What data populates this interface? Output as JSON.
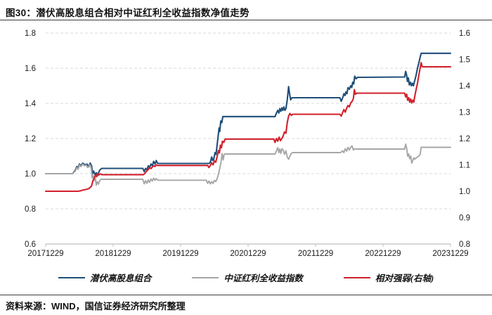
{
  "header": {
    "title": "图30：潜伏高股息组合相对中证红利全收益指数净值走势"
  },
  "footer": {
    "source": "资料来源：WIND，国信证券经济研究所整理"
  },
  "colors": {
    "portfolio": "#1F4E79",
    "index": "#A6A6A6",
    "relative": "#D0212D",
    "grid": "#D9D9D9",
    "axis": "#BFBFBF",
    "text": "#1a1a1a"
  },
  "chart_data": {
    "type": "line",
    "title": "图30：潜伏高股息组合相对中证红利全收益指数净值走势",
    "xlabel": "",
    "ylabel_left": "",
    "ylabel_right": "",
    "grid": "horizontal-dashed",
    "legend_position": "bottom",
    "x_range": [
      0,
      6
    ],
    "x_tick_labels": [
      "20171229",
      "20181229",
      "20191229",
      "20201229",
      "20211229",
      "20221229",
      "20231229"
    ],
    "left_axis": {
      "range": [
        0.6,
        1.8
      ],
      "ticks": [
        "0.6",
        "0.8",
        "1.0",
        "1.2",
        "1.4",
        "1.6",
        "1.8"
      ]
    },
    "right_axis": {
      "range": [
        0.8,
        1.6
      ],
      "ticks": [
        "0.8",
        "0.9",
        "1.0",
        "1.1",
        "1.2",
        "1.3",
        "1.4",
        "1.5",
        "1.6"
      ]
    },
    "series": [
      {
        "name": "潜伏高股息组合",
        "color": "#1F4E79",
        "axis": "left",
        "width": 2.1,
        "points": [
          [
            0,
            1.0
          ],
          [
            0.4,
            1.0
          ],
          [
            0.44,
            1.02
          ],
          [
            0.46,
            1.04
          ],
          [
            0.48,
            1.035
          ],
          [
            0.5,
            1.055
          ],
          [
            0.52,
            1.045
          ],
          [
            0.55,
            1.06
          ],
          [
            0.58,
            1.05
          ],
          [
            0.61,
            1.055
          ],
          [
            0.64,
            1.04
          ],
          [
            0.66,
            1.06
          ],
          [
            0.68,
            1.045
          ],
          [
            0.695,
            1.0
          ],
          [
            0.71,
            1.015
          ],
          [
            0.73,
            0.995
          ],
          [
            0.75,
            1.005
          ],
          [
            0.77,
            0.99
          ],
          [
            0.8,
            1.02
          ],
          [
            0.83,
            1.03
          ],
          [
            1.44,
            1.03
          ],
          [
            1.46,
            1.012
          ],
          [
            1.48,
            1.03
          ],
          [
            1.5,
            1.02
          ],
          [
            1.52,
            1.045
          ],
          [
            1.54,
            1.035
          ],
          [
            1.56,
            1.055
          ],
          [
            1.58,
            1.045
          ],
          [
            1.6,
            1.07
          ],
          [
            1.62,
            1.055
          ],
          [
            1.64,
            1.075
          ],
          [
            1.655,
            1.06
          ],
          [
            1.67,
            1.058
          ],
          [
            2.42,
            1.058
          ],
          [
            2.44,
            1.065
          ],
          [
            2.46,
            1.095
          ],
          [
            2.475,
            1.075
          ],
          [
            2.49,
            1.08
          ],
          [
            2.51,
            1.12
          ],
          [
            2.525,
            1.11
          ],
          [
            2.54,
            1.16
          ],
          [
            2.555,
            1.21
          ],
          [
            2.57,
            1.26
          ],
          [
            2.58,
            1.24
          ],
          [
            2.595,
            1.3
          ],
          [
            2.61,
            1.29
          ],
          [
            2.625,
            1.325
          ],
          [
            3.4,
            1.325
          ],
          [
            3.42,
            1.345
          ],
          [
            3.44,
            1.36
          ],
          [
            3.455,
            1.345
          ],
          [
            3.47,
            1.37
          ],
          [
            3.485,
            1.355
          ],
          [
            3.5,
            1.375
          ],
          [
            3.515,
            1.36
          ],
          [
            3.53,
            1.38
          ],
          [
            3.545,
            1.36
          ],
          [
            3.56,
            1.37
          ],
          [
            3.58,
            1.42
          ],
          [
            3.6,
            1.495
          ],
          [
            3.615,
            1.455
          ],
          [
            3.63,
            1.42
          ],
          [
            3.65,
            1.432
          ],
          [
            4.36,
            1.432
          ],
          [
            4.38,
            1.412
          ],
          [
            4.4,
            1.43
          ],
          [
            4.42,
            1.455
          ],
          [
            4.435,
            1.445
          ],
          [
            4.45,
            1.465
          ],
          [
            4.465,
            1.455
          ],
          [
            4.48,
            1.49
          ],
          [
            4.5,
            1.48
          ],
          [
            4.52,
            1.5
          ],
          [
            4.535,
            1.49
          ],
          [
            4.55,
            1.52
          ],
          [
            4.565,
            1.51
          ],
          [
            4.58,
            1.555
          ],
          [
            4.6,
            1.54
          ],
          [
            4.62,
            1.548
          ],
          [
            5.32,
            1.55
          ],
          [
            5.335,
            1.582
          ],
          [
            5.35,
            1.56
          ],
          [
            5.36,
            1.525
          ],
          [
            5.375,
            1.545
          ],
          [
            5.39,
            1.505
          ],
          [
            5.405,
            1.52
          ],
          [
            5.42,
            1.5
          ],
          [
            5.435,
            1.515
          ],
          [
            5.45,
            1.5
          ],
          [
            5.47,
            1.53
          ],
          [
            5.49,
            1.56
          ],
          [
            5.51,
            1.6
          ],
          [
            5.53,
            1.63
          ],
          [
            5.55,
            1.663
          ],
          [
            5.565,
            1.685
          ],
          [
            6.0,
            1.685
          ]
        ]
      },
      {
        "name": "中证红利全收益指数",
        "color": "#A6A6A6",
        "axis": "left",
        "width": 1.9,
        "points": [
          [
            0,
            1.0
          ],
          [
            0.4,
            1.0
          ],
          [
            0.44,
            1.015
          ],
          [
            0.46,
            1.035
          ],
          [
            0.48,
            1.025
          ],
          [
            0.5,
            1.05
          ],
          [
            0.52,
            1.04
          ],
          [
            0.55,
            1.055
          ],
          [
            0.575,
            1.045
          ],
          [
            0.6,
            1.05
          ],
          [
            0.62,
            1.035
          ],
          [
            0.645,
            1.045
          ],
          [
            0.66,
            1.05
          ],
          [
            0.675,
            1.03
          ],
          [
            0.69,
            0.975
          ],
          [
            0.705,
            0.99
          ],
          [
            0.72,
            0.96
          ],
          [
            0.735,
            0.975
          ],
          [
            0.75,
            0.935
          ],
          [
            0.765,
            0.955
          ],
          [
            0.78,
            0.94
          ],
          [
            0.8,
            0.96
          ],
          [
            0.82,
            0.968
          ],
          [
            1.44,
            0.968
          ],
          [
            1.46,
            0.942
          ],
          [
            1.48,
            0.96
          ],
          [
            1.5,
            0.945
          ],
          [
            1.52,
            0.965
          ],
          [
            1.54,
            0.95
          ],
          [
            1.56,
            0.97
          ],
          [
            1.58,
            0.958
          ],
          [
            1.6,
            0.975
          ],
          [
            1.62,
            0.962
          ],
          [
            1.64,
            0.972
          ],
          [
            1.66,
            0.963
          ],
          [
            2.38,
            0.963
          ],
          [
            2.4,
            0.945
          ],
          [
            2.42,
            0.958
          ],
          [
            2.44,
            0.942
          ],
          [
            2.46,
            0.955
          ],
          [
            2.48,
            0.944
          ],
          [
            2.5,
            0.962
          ],
          [
            2.52,
            0.955
          ],
          [
            2.54,
            0.97
          ],
          [
            2.56,
            0.998
          ],
          [
            2.58,
            1.03
          ],
          [
            2.6,
            1.07
          ],
          [
            2.615,
            1.115
          ],
          [
            2.63,
            1.078
          ],
          [
            2.645,
            1.11
          ],
          [
            2.66,
            1.112
          ],
          [
            3.4,
            1.112
          ],
          [
            3.42,
            1.13
          ],
          [
            3.44,
            1.148
          ],
          [
            3.455,
            1.12
          ],
          [
            3.47,
            1.14
          ],
          [
            3.485,
            1.115
          ],
          [
            3.5,
            1.142
          ],
          [
            3.52,
            1.135
          ],
          [
            3.54,
            1.11
          ],
          [
            3.56,
            1.13
          ],
          [
            3.58,
            1.095
          ],
          [
            3.6,
            1.082
          ],
          [
            3.62,
            1.1
          ],
          [
            3.64,
            1.115
          ],
          [
            3.66,
            1.12
          ],
          [
            4.36,
            1.12
          ],
          [
            4.38,
            1.122
          ],
          [
            4.4,
            1.13
          ],
          [
            4.42,
            1.12
          ],
          [
            4.44,
            1.142
          ],
          [
            4.46,
            1.128
          ],
          [
            4.48,
            1.15
          ],
          [
            4.5,
            1.135
          ],
          [
            4.52,
            1.15
          ],
          [
            4.54,
            1.158
          ],
          [
            4.56,
            1.135
          ],
          [
            4.58,
            1.142
          ],
          [
            4.6,
            1.14
          ],
          [
            5.32,
            1.14
          ],
          [
            5.335,
            1.168
          ],
          [
            5.35,
            1.145
          ],
          [
            5.365,
            1.1
          ],
          [
            5.38,
            1.112
          ],
          [
            5.395,
            1.085
          ],
          [
            5.41,
            1.1
          ],
          [
            5.425,
            1.06
          ],
          [
            5.44,
            1.075
          ],
          [
            5.455,
            1.09
          ],
          [
            5.47,
            1.082
          ],
          [
            5.49,
            1.09
          ],
          [
            5.51,
            1.095
          ],
          [
            5.53,
            1.1
          ],
          [
            5.55,
            1.11
          ],
          [
            5.565,
            1.15
          ],
          [
            6.0,
            1.15
          ]
        ]
      },
      {
        "name": "相对强弱(右轴)",
        "color": "#D0212D",
        "axis": "right",
        "width": 2.1,
        "points": [
          [
            0,
            1.0
          ],
          [
            0.48,
            1.0
          ],
          [
            0.52,
            1.002
          ],
          [
            0.56,
            1.005
          ],
          [
            0.6,
            1.007
          ],
          [
            0.64,
            1.01
          ],
          [
            0.68,
            1.02
          ],
          [
            0.7,
            1.04
          ],
          [
            0.72,
            1.05
          ],
          [
            0.74,
            1.062
          ],
          [
            0.755,
            1.055
          ],
          [
            0.77,
            1.068
          ],
          [
            0.79,
            1.062
          ],
          [
            0.81,
            1.066
          ],
          [
            0.83,
            1.063
          ],
          [
            1.45,
            1.063
          ],
          [
            1.47,
            1.068
          ],
          [
            1.5,
            1.078
          ],
          [
            1.52,
            1.082
          ],
          [
            1.54,
            1.09
          ],
          [
            1.56,
            1.086
          ],
          [
            1.58,
            1.092
          ],
          [
            1.6,
            1.097
          ],
          [
            1.62,
            1.094
          ],
          [
            1.64,
            1.1
          ],
          [
            1.66,
            1.098
          ],
          [
            2.4,
            1.098
          ],
          [
            2.42,
            1.09
          ],
          [
            2.44,
            1.098
          ],
          [
            2.46,
            1.108
          ],
          [
            2.48,
            1.1
          ],
          [
            2.5,
            1.115
          ],
          [
            2.52,
            1.11
          ],
          [
            2.54,
            1.13
          ],
          [
            2.56,
            1.155
          ],
          [
            2.575,
            1.145
          ],
          [
            2.59,
            1.175
          ],
          [
            2.605,
            1.165
          ],
          [
            2.62,
            1.19
          ],
          [
            2.64,
            1.185
          ],
          [
            2.66,
            1.198
          ],
          [
            3.38,
            1.198
          ],
          [
            3.4,
            1.185
          ],
          [
            3.42,
            1.2
          ],
          [
            3.44,
            1.19
          ],
          [
            3.46,
            1.205
          ],
          [
            3.48,
            1.192
          ],
          [
            3.5,
            1.2
          ],
          [
            3.52,
            1.21
          ],
          [
            3.54,
            1.225
          ],
          [
            3.56,
            1.22
          ],
          [
            3.58,
            1.26
          ],
          [
            3.6,
            1.285
          ],
          [
            3.62,
            1.295
          ],
          [
            3.64,
            1.288
          ],
          [
            3.66,
            1.292
          ],
          [
            4.36,
            1.292
          ],
          [
            4.38,
            1.285
          ],
          [
            4.4,
            1.298
          ],
          [
            4.42,
            1.31
          ],
          [
            4.44,
            1.3
          ],
          [
            4.46,
            1.315
          ],
          [
            4.48,
            1.325
          ],
          [
            4.5,
            1.32
          ],
          [
            4.52,
            1.335
          ],
          [
            4.54,
            1.34
          ],
          [
            4.56,
            1.352
          ],
          [
            4.575,
            1.385
          ],
          [
            4.59,
            1.368
          ],
          [
            4.61,
            1.372
          ],
          [
            5.32,
            1.372
          ],
          [
            5.335,
            1.358
          ],
          [
            5.35,
            1.368
          ],
          [
            5.365,
            1.345
          ],
          [
            5.38,
            1.355
          ],
          [
            5.395,
            1.338
          ],
          [
            5.41,
            1.35
          ],
          [
            5.425,
            1.335
          ],
          [
            5.44,
            1.345
          ],
          [
            5.455,
            1.338
          ],
          [
            5.47,
            1.36
          ],
          [
            5.49,
            1.385
          ],
          [
            5.51,
            1.41
          ],
          [
            5.53,
            1.44
          ],
          [
            5.55,
            1.468
          ],
          [
            5.565,
            1.488
          ],
          [
            5.58,
            1.472
          ],
          [
            6.0,
            1.472
          ]
        ]
      }
    ]
  }
}
